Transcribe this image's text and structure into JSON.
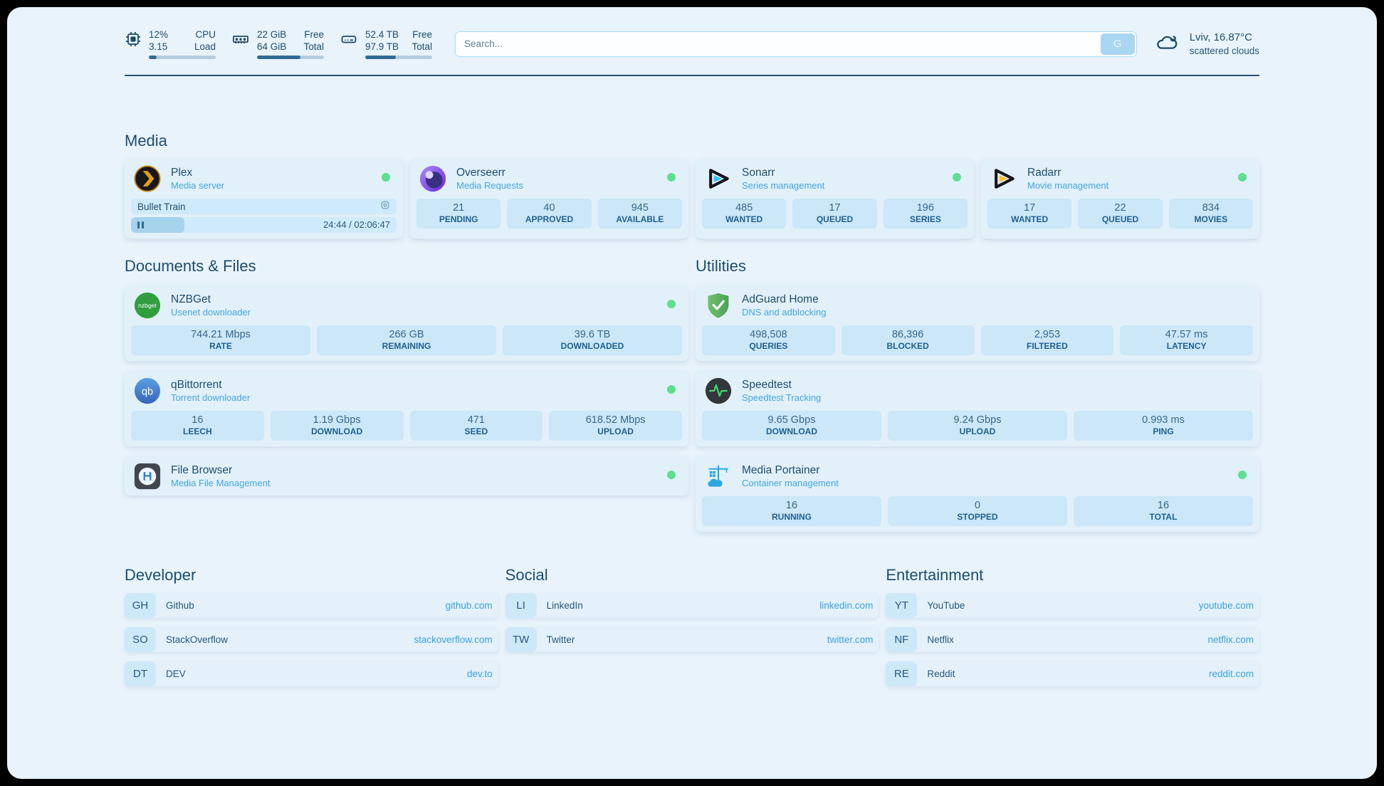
{
  "colors": {
    "page_bg": "#e9f3fb",
    "card_bg": "#e2f0fa",
    "tile_bg": "#cbe7f8",
    "accent_blue": "#43a5e2",
    "text_dark": "#1d4d6e",
    "status_online": "#5ede92",
    "progress_fill": "#2f6b94",
    "link_url": "#3b9fdf"
  },
  "topbar": {
    "cpu": {
      "icon": "cpu-chip-icon",
      "value_top": "12%",
      "value_bottom": "3.15",
      "label_top": "CPU",
      "label_bottom": "Load",
      "progress_pct": 12
    },
    "ram": {
      "icon": "ram-icon",
      "value_top": "22 GiB",
      "value_bottom": "64 GiB",
      "label_top": "Free",
      "label_bottom": "Total",
      "progress_pct": 65
    },
    "disk": {
      "icon": "disk-icon",
      "value_top": "52.4 TB",
      "value_bottom": "97.9 TB",
      "label_top": "Free",
      "label_bottom": "Total",
      "progress_pct": 46
    },
    "search": {
      "placeholder": "Search...",
      "button_label": "G"
    },
    "weather": {
      "icon": "cloud-icon",
      "location": "Lviv, 16.87°C",
      "condition": "scattered clouds"
    }
  },
  "media": {
    "heading": "Media",
    "plex": {
      "icon": "plex-icon",
      "title": "Plex",
      "subtitle": "Media server",
      "status": "online",
      "now_playing": "Bullet Train",
      "time_display": "24:44 / 02:06:47",
      "progress_pct": 20
    },
    "overseerr": {
      "icon": "overseerr-icon",
      "title": "Overseerr",
      "subtitle": "Media Requests",
      "status": "online",
      "stats": [
        {
          "value": "21",
          "label": "PENDING"
        },
        {
          "value": "40",
          "label": "APPROVED"
        },
        {
          "value": "945",
          "label": "AVAILABLE"
        }
      ]
    },
    "sonarr": {
      "icon": "sonarr-icon",
      "title": "Sonarr",
      "subtitle": "Series management",
      "status": "online",
      "stats": [
        {
          "value": "485",
          "label": "WANTED"
        },
        {
          "value": "17",
          "label": "QUEUED"
        },
        {
          "value": "196",
          "label": "SERIES"
        }
      ]
    },
    "radarr": {
      "icon": "radarr-icon",
      "title": "Radarr",
      "subtitle": "Movie management",
      "status": "online",
      "stats": [
        {
          "value": "17",
          "label": "WANTED"
        },
        {
          "value": "22",
          "label": "QUEUED"
        },
        {
          "value": "834",
          "label": "MOVIES"
        }
      ]
    }
  },
  "documents": {
    "heading": "Documents & Files",
    "nzbget": {
      "icon": "nzbget-icon",
      "title": "NZBGet",
      "subtitle": "Usenet downloader",
      "status": "online",
      "stats": [
        {
          "value": "744.21 Mbps",
          "label": "RATE"
        },
        {
          "value": "266 GB",
          "label": "REMAINING"
        },
        {
          "value": "39.6 TB",
          "label": "DOWNLOADED"
        }
      ]
    },
    "qbittorrent": {
      "icon": "qbittorrent-icon",
      "title": "qBittorrent",
      "subtitle": "Torrent downloader",
      "status": "online",
      "stats": [
        {
          "value": "16",
          "label": "LEECH"
        },
        {
          "value": "1.19 Gbps",
          "label": "DOWNLOAD"
        },
        {
          "value": "471",
          "label": "SEED"
        },
        {
          "value": "618.52 Mbps",
          "label": "UPLOAD"
        }
      ]
    },
    "filebrowser": {
      "icon": "filebrowser-icon",
      "title": "File Browser",
      "subtitle": "Media File Management",
      "status": "online"
    }
  },
  "utilities": {
    "heading": "Utilities",
    "adguard": {
      "icon": "adguard-shield-icon",
      "title": "AdGuard Home",
      "subtitle": "DNS and adblocking",
      "stats": [
        {
          "value": "498,508",
          "label": "QUERIES"
        },
        {
          "value": "86,396",
          "label": "BLOCKED"
        },
        {
          "value": "2,953",
          "label": "FILTERED"
        },
        {
          "value": "47.57 ms",
          "label": "LATENCY"
        }
      ]
    },
    "speedtest": {
      "icon": "speedtest-pulse-icon",
      "title": "Speedtest",
      "subtitle": "Speedtest Tracking",
      "stats": [
        {
          "value": "9.65 Gbps",
          "label": "DOWNLOAD"
        },
        {
          "value": "9.24 Gbps",
          "label": "UPLOAD"
        },
        {
          "value": "0.993 ms",
          "label": "PING"
        }
      ]
    },
    "portainer": {
      "icon": "portainer-crane-icon",
      "title": "Media Portainer",
      "subtitle": "Container management",
      "status": "online",
      "stats": [
        {
          "value": "16",
          "label": "RUNNING"
        },
        {
          "value": "0",
          "label": "STOPPED"
        },
        {
          "value": "16",
          "label": "TOTAL"
        }
      ]
    }
  },
  "links": {
    "developer": {
      "heading": "Developer",
      "items": [
        {
          "abbr": "GH",
          "name": "Github",
          "url": "github.com"
        },
        {
          "abbr": "SO",
          "name": "StackOverflow",
          "url": "stackoverflow.com"
        },
        {
          "abbr": "DT",
          "name": "DEV",
          "url": "dev.to"
        }
      ]
    },
    "social": {
      "heading": "Social",
      "items": [
        {
          "abbr": "LI",
          "name": "LinkedIn",
          "url": "linkedin.com"
        },
        {
          "abbr": "TW",
          "name": "Twitter",
          "url": "twitter.com"
        }
      ]
    },
    "entertainment": {
      "heading": "Entertainment",
      "items": [
        {
          "abbr": "YT",
          "name": "YouTube",
          "url": "youtube.com"
        },
        {
          "abbr": "NF",
          "name": "Netflix",
          "url": "netflix.com"
        },
        {
          "abbr": "RE",
          "name": "Reddit",
          "url": "reddit.com"
        }
      ]
    }
  }
}
